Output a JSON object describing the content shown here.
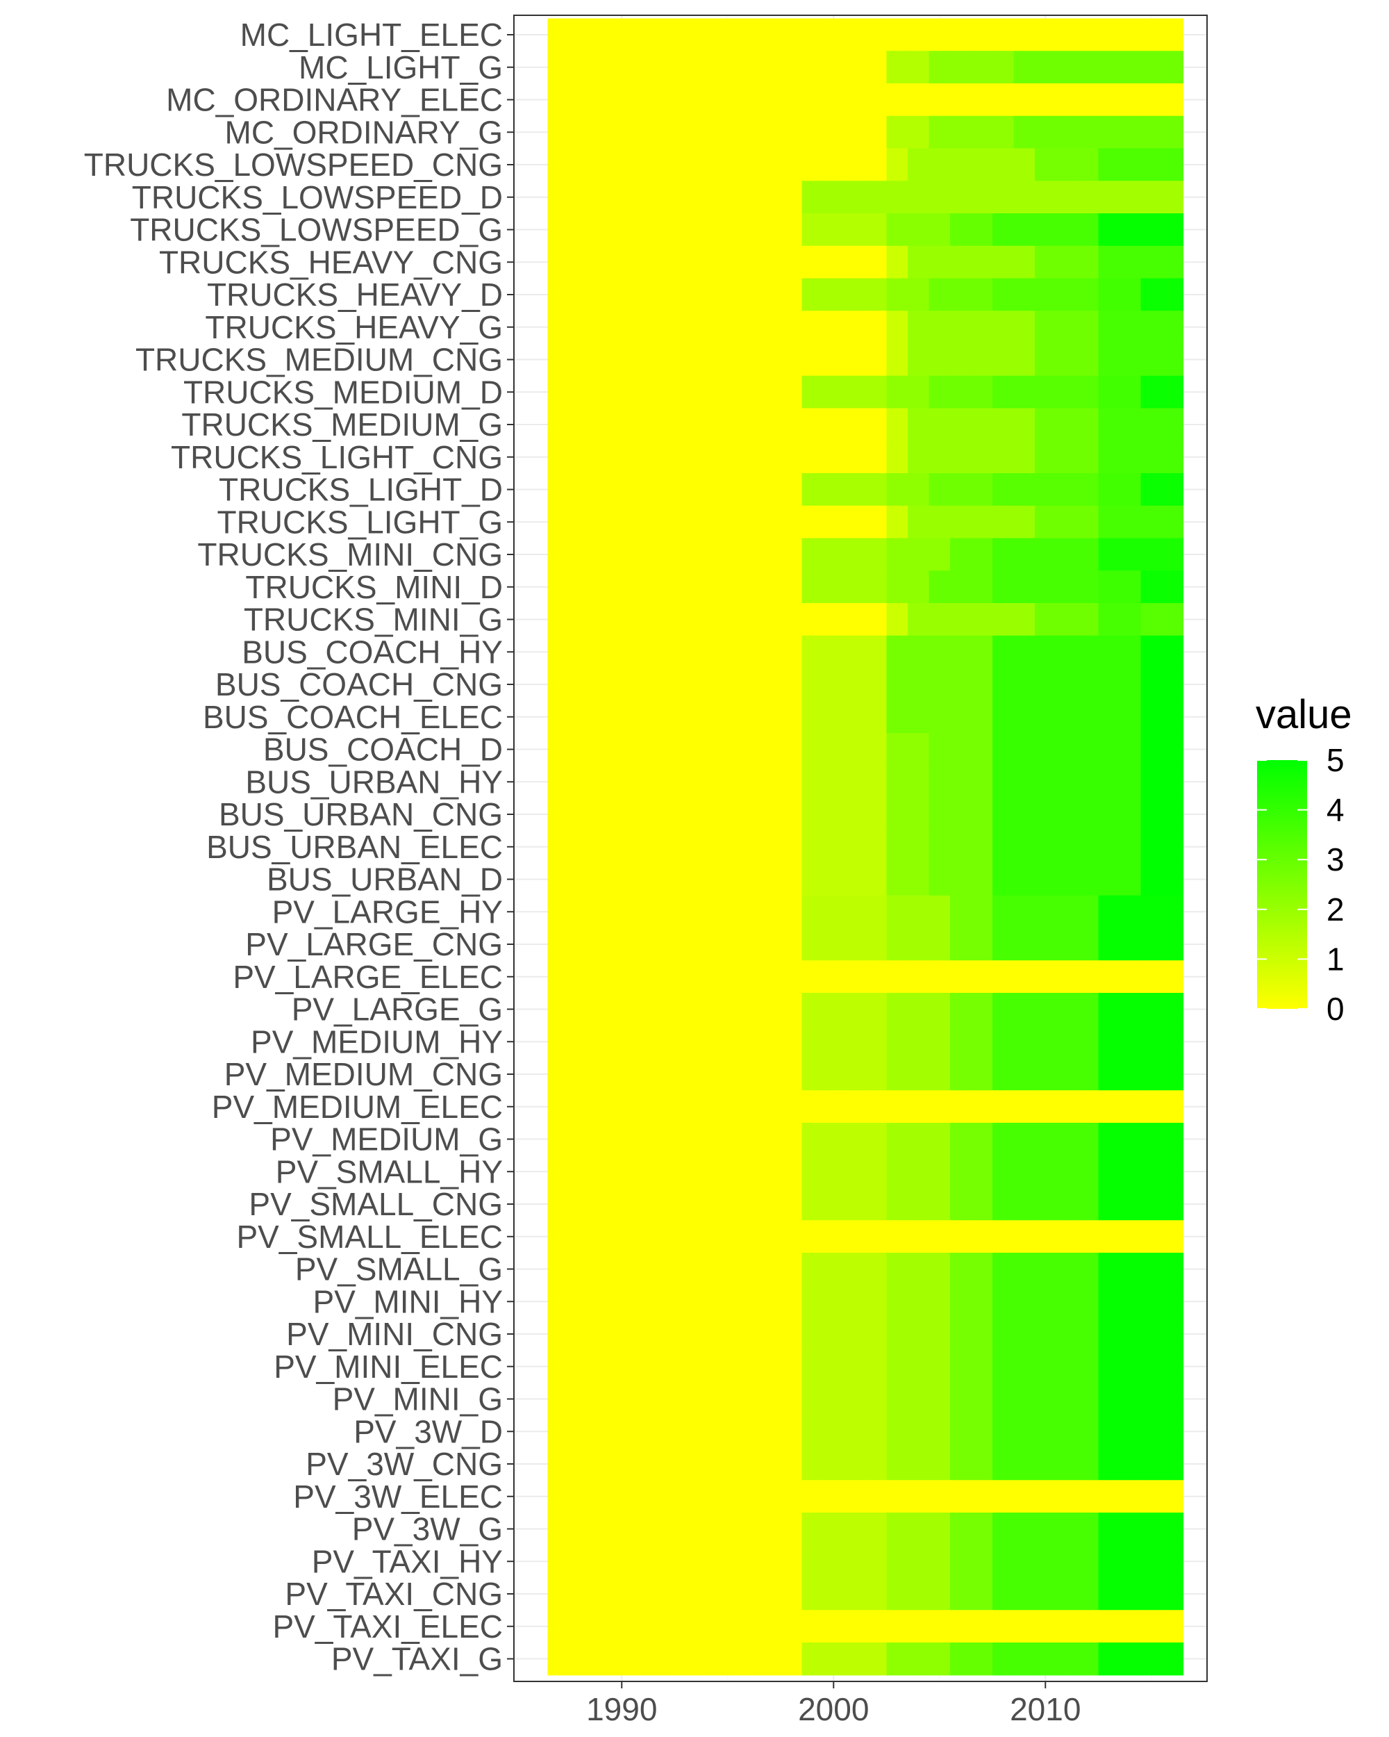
{
  "chart_data": {
    "type": "heatmap",
    "title": "",
    "xlabel": "",
    "ylabel": "",
    "x_ticks": [
      1990,
      2000,
      2010
    ],
    "xlim": [
      1985,
      2017.5
    ],
    "x": [
      1987,
      1988,
      1989,
      1990,
      1991,
      1992,
      1993,
      1994,
      1995,
      1996,
      1997,
      1998,
      1999,
      2000,
      2001,
      2002,
      2003,
      2004,
      2005,
      2006,
      2007,
      2008,
      2009,
      2010,
      2011,
      2012,
      2013,
      2014,
      2015,
      2016
    ],
    "rows": [
      "MC_LIGHT_ELEC",
      "MC_LIGHT_G",
      "MC_ORDINARY_ELEC",
      "MC_ORDINARY_G",
      "TRUCKS_LOWSPEED_CNG",
      "TRUCKS_LOWSPEED_D",
      "TRUCKS_LOWSPEED_G",
      "TRUCKS_HEAVY_CNG",
      "TRUCKS_HEAVY_D",
      "TRUCKS_HEAVY_G",
      "TRUCKS_MEDIUM_CNG",
      "TRUCKS_MEDIUM_D",
      "TRUCKS_MEDIUM_G",
      "TRUCKS_LIGHT_CNG",
      "TRUCKS_LIGHT_D",
      "TRUCKS_LIGHT_G",
      "TRUCKS_MINI_CNG",
      "TRUCKS_MINI_D",
      "TRUCKS_MINI_G",
      "BUS_COACH_HY",
      "BUS_COACH_CNG",
      "BUS_COACH_ELEC",
      "BUS_COACH_D",
      "BUS_URBAN_HY",
      "BUS_URBAN_CNG",
      "BUS_URBAN_ELEC",
      "BUS_URBAN_D",
      "PV_LARGE_HY",
      "PV_LARGE_CNG",
      "PV_LARGE_ELEC",
      "PV_LARGE_G",
      "PV_MEDIUM_HY",
      "PV_MEDIUM_CNG",
      "PV_MEDIUM_ELEC",
      "PV_MEDIUM_G",
      "PV_SMALL_HY",
      "PV_SMALL_CNG",
      "PV_SMALL_ELEC",
      "PV_SMALL_G",
      "PV_MINI_HY",
      "PV_MINI_CNG",
      "PV_MINI_ELEC",
      "PV_MINI_G",
      "PV_3W_D",
      "PV_3W_CNG",
      "PV_3W_ELEC",
      "PV_3W_G",
      "PV_TAXI_HY",
      "PV_TAXI_CNG",
      "PV_TAXI_ELEC",
      "PV_TAXI_G"
    ],
    "segments_note": "each row: list of [start_year, end_year, value]; years not covered are 0",
    "segments": {
      "MC_LIGHT_ELEC": [],
      "MC_LIGHT_G": [
        [
          2003,
          2004,
          1.5
        ],
        [
          2005,
          2008,
          2.2
        ],
        [
          2009,
          2016,
          2.8
        ]
      ],
      "MC_ORDINARY_ELEC": [],
      "MC_ORDINARY_G": [
        [
          2003,
          2004,
          1.5
        ],
        [
          2005,
          2008,
          2.2
        ],
        [
          2009,
          2016,
          2.8
        ]
      ],
      "TRUCKS_LOWSPEED_CNG": [
        [
          2003,
          2003,
          1.0
        ],
        [
          2004,
          2009,
          1.8
        ],
        [
          2010,
          2012,
          2.7
        ],
        [
          2013,
          2016,
          3.5
        ]
      ],
      "TRUCKS_LOWSPEED_D": [
        [
          1999,
          2016,
          1.8
        ]
      ],
      "TRUCKS_LOWSPEED_G": [
        [
          1999,
          2002,
          1.5
        ],
        [
          2003,
          2005,
          2.3
        ],
        [
          2006,
          2007,
          3.0
        ],
        [
          2008,
          2012,
          3.6
        ],
        [
          2013,
          2016,
          4.9
        ]
      ],
      "TRUCKS_HEAVY_CNG": [
        [
          2003,
          2003,
          1.0
        ],
        [
          2004,
          2009,
          2.0
        ],
        [
          2010,
          2012,
          2.8
        ],
        [
          2013,
          2016,
          3.6
        ]
      ],
      "TRUCKS_HEAVY_D": [
        [
          1999,
          2002,
          1.7
        ],
        [
          2003,
          2004,
          2.2
        ],
        [
          2005,
          2007,
          2.8
        ],
        [
          2008,
          2012,
          3.3
        ],
        [
          2013,
          2014,
          3.7
        ],
        [
          2015,
          2016,
          4.8
        ]
      ],
      "TRUCKS_HEAVY_G": [
        [
          2003,
          2003,
          1.0
        ],
        [
          2004,
          2009,
          2.0
        ],
        [
          2010,
          2012,
          2.8
        ],
        [
          2013,
          2016,
          3.6
        ]
      ],
      "TRUCKS_MEDIUM_CNG": [
        [
          2003,
          2003,
          1.0
        ],
        [
          2004,
          2009,
          2.0
        ],
        [
          2010,
          2012,
          2.8
        ],
        [
          2013,
          2016,
          3.6
        ]
      ],
      "TRUCKS_MEDIUM_D": [
        [
          1999,
          2002,
          1.7
        ],
        [
          2003,
          2004,
          2.2
        ],
        [
          2005,
          2007,
          2.8
        ],
        [
          2008,
          2012,
          3.3
        ],
        [
          2013,
          2014,
          3.7
        ],
        [
          2015,
          2016,
          4.8
        ]
      ],
      "TRUCKS_MEDIUM_G": [
        [
          2003,
          2003,
          1.0
        ],
        [
          2004,
          2009,
          2.0
        ],
        [
          2010,
          2012,
          2.8
        ],
        [
          2013,
          2016,
          3.6
        ]
      ],
      "TRUCKS_LIGHT_CNG": [
        [
          2003,
          2003,
          1.0
        ],
        [
          2004,
          2009,
          2.0
        ],
        [
          2010,
          2012,
          2.8
        ],
        [
          2013,
          2016,
          3.6
        ]
      ],
      "TRUCKS_LIGHT_D": [
        [
          1999,
          2002,
          1.7
        ],
        [
          2003,
          2004,
          2.2
        ],
        [
          2005,
          2007,
          2.8
        ],
        [
          2008,
          2012,
          3.3
        ],
        [
          2013,
          2014,
          3.7
        ],
        [
          2015,
          2016,
          4.8
        ]
      ],
      "TRUCKS_LIGHT_G": [
        [
          2003,
          2003,
          1.0
        ],
        [
          2004,
          2009,
          2.0
        ],
        [
          2010,
          2012,
          2.8
        ],
        [
          2013,
          2016,
          3.6
        ]
      ],
      "TRUCKS_MINI_CNG": [
        [
          1999,
          2002,
          1.7
        ],
        [
          2003,
          2005,
          2.2
        ],
        [
          2006,
          2007,
          3.0
        ],
        [
          2008,
          2012,
          3.6
        ],
        [
          2013,
          2016,
          4.5
        ]
      ],
      "TRUCKS_MINI_D": [
        [
          1999,
          2002,
          1.7
        ],
        [
          2003,
          2004,
          2.2
        ],
        [
          2005,
          2007,
          3.0
        ],
        [
          2008,
          2012,
          3.6
        ],
        [
          2013,
          2014,
          3.8
        ],
        [
          2015,
          2016,
          4.8
        ]
      ],
      "TRUCKS_MINI_G": [
        [
          2003,
          2003,
          1.0
        ],
        [
          2004,
          2009,
          2.0
        ],
        [
          2010,
          2012,
          2.8
        ],
        [
          2013,
          2014,
          3.6
        ],
        [
          2015,
          2016,
          3.3
        ]
      ],
      "BUS_COACH_HY": [
        [
          1999,
          2002,
          1.2
        ],
        [
          2003,
          2007,
          2.7
        ],
        [
          2008,
          2014,
          3.9
        ],
        [
          2015,
          2016,
          5.0
        ]
      ],
      "BUS_COACH_CNG": [
        [
          1999,
          2002,
          1.2
        ],
        [
          2003,
          2007,
          2.7
        ],
        [
          2008,
          2014,
          3.9
        ],
        [
          2015,
          2016,
          5.0
        ]
      ],
      "BUS_COACH_ELEC": [
        [
          1999,
          2002,
          1.2
        ],
        [
          2003,
          2007,
          2.7
        ],
        [
          2008,
          2014,
          3.9
        ],
        [
          2015,
          2016,
          5.0
        ]
      ],
      "BUS_COACH_D": [
        [
          1999,
          2002,
          1.2
        ],
        [
          2003,
          2004,
          2.2
        ],
        [
          2005,
          2007,
          2.7
        ],
        [
          2008,
          2014,
          3.9
        ],
        [
          2015,
          2016,
          5.0
        ]
      ],
      "BUS_URBAN_HY": [
        [
          1999,
          2002,
          1.2
        ],
        [
          2003,
          2004,
          2.2
        ],
        [
          2005,
          2007,
          2.7
        ],
        [
          2008,
          2014,
          3.9
        ],
        [
          2015,
          2016,
          5.0
        ]
      ],
      "BUS_URBAN_CNG": [
        [
          1999,
          2002,
          1.2
        ],
        [
          2003,
          2004,
          2.2
        ],
        [
          2005,
          2007,
          2.7
        ],
        [
          2008,
          2014,
          3.9
        ],
        [
          2015,
          2016,
          5.0
        ]
      ],
      "BUS_URBAN_ELEC": [
        [
          1999,
          2002,
          1.2
        ],
        [
          2003,
          2004,
          2.2
        ],
        [
          2005,
          2007,
          2.7
        ],
        [
          2008,
          2014,
          3.9
        ],
        [
          2015,
          2016,
          5.0
        ]
      ],
      "BUS_URBAN_D": [
        [
          1999,
          2002,
          1.2
        ],
        [
          2003,
          2004,
          2.2
        ],
        [
          2005,
          2007,
          2.7
        ],
        [
          2008,
          2014,
          3.9
        ],
        [
          2015,
          2016,
          5.0
        ]
      ],
      "PV_LARGE_HY": [
        [
          1999,
          2002,
          1.3
        ],
        [
          2003,
          2005,
          1.8
        ],
        [
          2006,
          2007,
          2.7
        ],
        [
          2008,
          2012,
          3.6
        ],
        [
          2013,
          2016,
          4.9
        ]
      ],
      "PV_LARGE_CNG": [
        [
          1999,
          2002,
          1.3
        ],
        [
          2003,
          2005,
          1.8
        ],
        [
          2006,
          2007,
          2.7
        ],
        [
          2008,
          2012,
          3.6
        ],
        [
          2013,
          2016,
          4.9
        ]
      ],
      "PV_LARGE_ELEC": [],
      "PV_LARGE_G": [
        [
          1999,
          2002,
          1.3
        ],
        [
          2003,
          2005,
          1.8
        ],
        [
          2006,
          2007,
          2.7
        ],
        [
          2008,
          2012,
          3.6
        ],
        [
          2013,
          2016,
          4.9
        ]
      ],
      "PV_MEDIUM_HY": [
        [
          1999,
          2002,
          1.3
        ],
        [
          2003,
          2005,
          1.8
        ],
        [
          2006,
          2007,
          2.7
        ],
        [
          2008,
          2012,
          3.6
        ],
        [
          2013,
          2016,
          4.9
        ]
      ],
      "PV_MEDIUM_CNG": [
        [
          1999,
          2002,
          1.3
        ],
        [
          2003,
          2005,
          1.8
        ],
        [
          2006,
          2007,
          2.7
        ],
        [
          2008,
          2012,
          3.6
        ],
        [
          2013,
          2016,
          4.9
        ]
      ],
      "PV_MEDIUM_ELEC": [],
      "PV_MEDIUM_G": [
        [
          1999,
          2002,
          1.3
        ],
        [
          2003,
          2005,
          1.8
        ],
        [
          2006,
          2007,
          2.7
        ],
        [
          2008,
          2012,
          3.6
        ],
        [
          2013,
          2016,
          4.9
        ]
      ],
      "PV_SMALL_HY": [
        [
          1999,
          2002,
          1.3
        ],
        [
          2003,
          2005,
          1.8
        ],
        [
          2006,
          2007,
          2.7
        ],
        [
          2008,
          2012,
          3.6
        ],
        [
          2013,
          2016,
          4.9
        ]
      ],
      "PV_SMALL_CNG": [
        [
          1999,
          2002,
          1.3
        ],
        [
          2003,
          2005,
          1.8
        ],
        [
          2006,
          2007,
          2.7
        ],
        [
          2008,
          2012,
          3.6
        ],
        [
          2013,
          2016,
          4.9
        ]
      ],
      "PV_SMALL_ELEC": [],
      "PV_SMALL_G": [
        [
          1999,
          2002,
          1.3
        ],
        [
          2003,
          2005,
          1.8
        ],
        [
          2006,
          2007,
          2.7
        ],
        [
          2008,
          2012,
          3.6
        ],
        [
          2013,
          2016,
          4.9
        ]
      ],
      "PV_MINI_HY": [
        [
          1999,
          2002,
          1.3
        ],
        [
          2003,
          2005,
          1.8
        ],
        [
          2006,
          2007,
          2.7
        ],
        [
          2008,
          2012,
          3.6
        ],
        [
          2013,
          2016,
          4.9
        ]
      ],
      "PV_MINI_CNG": [
        [
          1999,
          2002,
          1.3
        ],
        [
          2003,
          2005,
          1.8
        ],
        [
          2006,
          2007,
          2.7
        ],
        [
          2008,
          2012,
          3.6
        ],
        [
          2013,
          2016,
          4.9
        ]
      ],
      "PV_MINI_ELEC": [
        [
          1999,
          2002,
          1.3
        ],
        [
          2003,
          2005,
          1.8
        ],
        [
          2006,
          2007,
          2.7
        ],
        [
          2008,
          2012,
          3.6
        ],
        [
          2013,
          2016,
          4.9
        ]
      ],
      "PV_MINI_G": [
        [
          1999,
          2002,
          1.3
        ],
        [
          2003,
          2005,
          1.8
        ],
        [
          2006,
          2007,
          2.7
        ],
        [
          2008,
          2012,
          3.6
        ],
        [
          2013,
          2016,
          4.9
        ]
      ],
      "PV_3W_D": [
        [
          1999,
          2002,
          1.3
        ],
        [
          2003,
          2005,
          1.8
        ],
        [
          2006,
          2007,
          2.7
        ],
        [
          2008,
          2012,
          3.6
        ],
        [
          2013,
          2016,
          4.9
        ]
      ],
      "PV_3W_CNG": [
        [
          1999,
          2002,
          1.3
        ],
        [
          2003,
          2005,
          1.8
        ],
        [
          2006,
          2007,
          2.7
        ],
        [
          2008,
          2012,
          3.6
        ],
        [
          2013,
          2016,
          4.9
        ]
      ],
      "PV_3W_ELEC": [],
      "PV_3W_G": [
        [
          1999,
          2002,
          1.3
        ],
        [
          2003,
          2005,
          1.8
        ],
        [
          2006,
          2007,
          2.7
        ],
        [
          2008,
          2012,
          3.6
        ],
        [
          2013,
          2016,
          4.9
        ]
      ],
      "PV_TAXI_HY": [
        [
          1999,
          2002,
          1.3
        ],
        [
          2003,
          2005,
          1.8
        ],
        [
          2006,
          2007,
          2.7
        ],
        [
          2008,
          2012,
          3.6
        ],
        [
          2013,
          2016,
          4.9
        ]
      ],
      "PV_TAXI_CNG": [
        [
          1999,
          2002,
          1.3
        ],
        [
          2003,
          2005,
          1.8
        ],
        [
          2006,
          2007,
          2.7
        ],
        [
          2008,
          2012,
          3.6
        ],
        [
          2013,
          2016,
          4.9
        ]
      ],
      "PV_TAXI_ELEC": [],
      "PV_TAXI_G": [
        [
          1999,
          2002,
          1.3
        ],
        [
          2003,
          2005,
          2.2
        ],
        [
          2006,
          2007,
          3.0
        ],
        [
          2008,
          2012,
          3.6
        ],
        [
          2013,
          2016,
          4.9
        ]
      ]
    },
    "legend": {
      "title": "value",
      "position": "right",
      "range": [
        0,
        5
      ],
      "ticks": [
        0,
        1,
        2,
        3,
        4,
        5
      ],
      "low_color": "#ffff00",
      "high_color": "#00ff00"
    },
    "grid": true
  }
}
